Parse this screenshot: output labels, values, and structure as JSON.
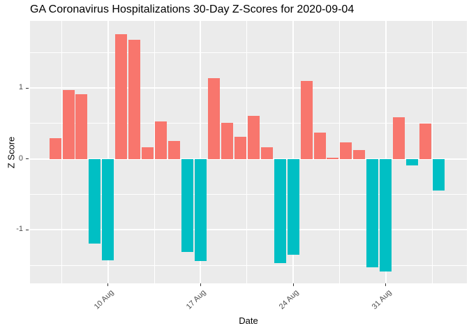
{
  "title": "GA Coronavirus Hospitalizations 30-Day Z-Scores for 2020-09-04",
  "axes": {
    "x_title": "Date",
    "y_title": "Z Score",
    "y_tick_labels": [
      "1",
      "0",
      "-1"
    ],
    "x_tick_labels": [
      "10 Aug",
      "17 Aug",
      "24 Aug",
      "31 Aug"
    ]
  },
  "colors": {
    "positive_bar": "#F8766D",
    "negative_bar": "#00BFC4",
    "panel_background": "#EBEBEB",
    "gridline": "#FFFFFF",
    "tick_text": "#4D4D4D",
    "tick_mark": "#333333"
  },
  "chart_data": {
    "type": "bar",
    "title": "GA Coronavirus Hospitalizations 30-Day Z-Scores for 2020-09-04",
    "xlabel": "Date",
    "ylabel": "Z Score",
    "x": [
      "2020-08-06",
      "2020-08-07",
      "2020-08-08",
      "2020-08-09",
      "2020-08-10",
      "2020-08-11",
      "2020-08-12",
      "2020-08-13",
      "2020-08-14",
      "2020-08-15",
      "2020-08-16",
      "2020-08-17",
      "2020-08-18",
      "2020-08-19",
      "2020-08-20",
      "2020-08-21",
      "2020-08-22",
      "2020-08-23",
      "2020-08-24",
      "2020-08-25",
      "2020-08-26",
      "2020-08-27",
      "2020-08-28",
      "2020-08-29",
      "2020-08-30",
      "2020-08-31",
      "2020-09-01",
      "2020-09-02",
      "2020-09-03",
      "2020-09-04"
    ],
    "values": [
      0.29,
      0.97,
      0.91,
      -1.19,
      -1.43,
      1.76,
      1.68,
      0.16,
      0.53,
      0.25,
      -1.31,
      -1.44,
      1.14,
      0.51,
      0.31,
      0.61,
      0.16,
      -1.47,
      -1.35,
      1.1,
      0.37,
      0.02,
      0.23,
      0.13,
      -1.53,
      -1.59,
      0.59,
      -0.09,
      0.5,
      -0.45
    ],
    "color_rule": "positive values salmon #F8766D, negative values teal #00BFC4",
    "ylim": [
      -1.76,
      1.93
    ],
    "y_major_ticks": [
      1,
      0,
      -1
    ],
    "y_minor_ticks": [
      1.5,
      0.5,
      -0.5,
      -1.5
    ],
    "x_tick_labels": [
      "10 Aug",
      "17 Aug",
      "24 Aug",
      "31 Aug"
    ],
    "x_major_tick_indices": [
      4,
      11,
      18,
      25
    ],
    "x_minor_tick_indices": [
      0.5,
      7.5,
      14.5,
      21.5,
      28.5
    ],
    "legend": "none",
    "grid": "white major+minor gridlines on gray panel"
  }
}
